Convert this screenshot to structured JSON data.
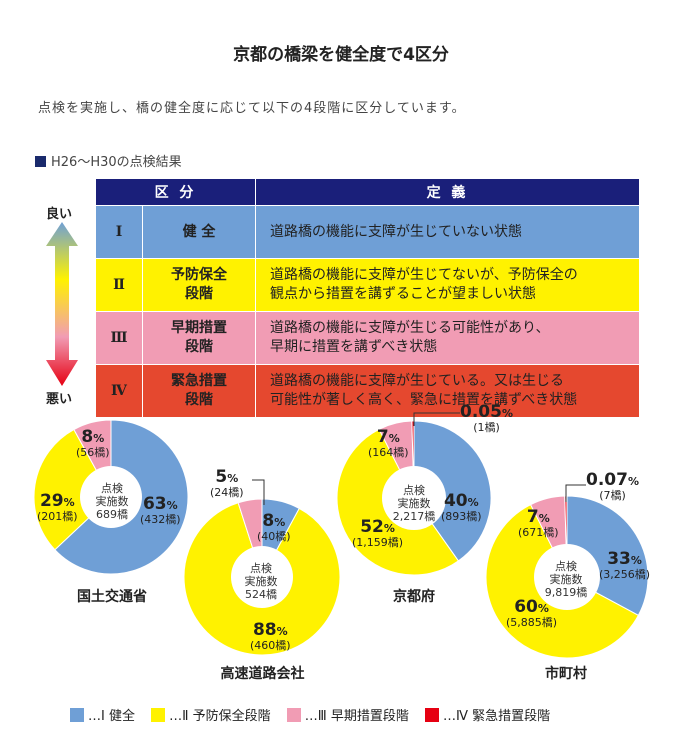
{
  "title": "京都の橋梁を健全度で4区分",
  "intro": "点検を実施し、橋の健全度に応じて以下の4段階に区分しています。",
  "section": "H26〜H30の点検結果",
  "table": {
    "header_class": "区 分",
    "header_def": "定 義",
    "rows": [
      {
        "num": "Ⅰ",
        "cls1": "健 全",
        "cls2": "",
        "d1": "道路橋の機能に支障が生じていない状態",
        "d2": ""
      },
      {
        "num": "Ⅱ",
        "cls1": "予防保全",
        "cls2": "段階",
        "d1": "道路橋の機能に支障が生じてないが、予防保全の",
        "d2": "観点から措置を講ずることが望ましい状態"
      },
      {
        "num": "Ⅲ",
        "cls1": "早期措置",
        "cls2": "段階",
        "d1": "道路橋の機能に支障が生じる可能性があり、",
        "d2": "早期に措置を講ずべき状態"
      },
      {
        "num": "Ⅳ",
        "cls1": "緊急措置",
        "cls2": "段階",
        "d1": "道路橋の機能に支障が生じている。又は生じる",
        "d2": "可能性が著しく高く、緊急に措置を講ずべき状態"
      }
    ]
  },
  "scale": {
    "good": "良い",
    "bad": "悪い"
  },
  "colors": {
    "I": "#6f9fd6",
    "II": "#fff200",
    "III": "#f19cb4",
    "IV": "#e60012"
  },
  "chart_data": [
    {
      "type": "pie",
      "name": "国土交通省",
      "center_label": [
        "点検",
        "実施数",
        "689橋"
      ],
      "slices": [
        {
          "category": "I",
          "percent": 63,
          "pct_label": "63",
          "count": "(432橋)"
        },
        {
          "category": "II",
          "percent": 29,
          "pct_label": "29",
          "count": "(201橋)"
        },
        {
          "category": "III",
          "percent": 8,
          "pct_label": "8",
          "count": "(56橋)"
        }
      ]
    },
    {
      "type": "pie",
      "name": "高速道路会社",
      "center_label": [
        "点検",
        "実施数",
        "524橋"
      ],
      "slices": [
        {
          "category": "I",
          "percent": 8,
          "pct_label": "8",
          "count": "(40橋)"
        },
        {
          "category": "II",
          "percent": 88,
          "pct_label": "88",
          "count": "(460橋)"
        },
        {
          "category": "III",
          "percent": 5,
          "pct_label": "5",
          "count": "(24橋)"
        }
      ]
    },
    {
      "type": "pie",
      "name": "京都府",
      "center_label": [
        "点検",
        "実施数",
        "2,217橋"
      ],
      "slices": [
        {
          "category": "I",
          "percent": 40,
          "pct_label": "40",
          "count": "(893橋)"
        },
        {
          "category": "II",
          "percent": 52,
          "pct_label": "52",
          "count": "(1,159橋)"
        },
        {
          "category": "III",
          "percent": 7,
          "pct_label": "7",
          "count": "(164橋)"
        },
        {
          "category": "IV",
          "percent": 0.05,
          "pct_label": "0.05",
          "count": "(1橋)"
        }
      ]
    },
    {
      "type": "pie",
      "name": "市町村",
      "center_label": [
        "点検",
        "実施数",
        "9,819橋"
      ],
      "slices": [
        {
          "category": "I",
          "percent": 33,
          "pct_label": "33",
          "count": "(3,256橋)"
        },
        {
          "category": "II",
          "percent": 60,
          "pct_label": "60",
          "count": "(5,885橋)"
        },
        {
          "category": "III",
          "percent": 7,
          "pct_label": "7",
          "count": "(671橋)"
        },
        {
          "category": "IV",
          "percent": 0.07,
          "pct_label": "0.07",
          "count": "(7橋)"
        }
      ]
    }
  ],
  "legend": [
    {
      "category": "I",
      "label": "…Ⅰ 健全"
    },
    {
      "category": "II",
      "label": "…Ⅱ 予防保全段階"
    },
    {
      "category": "III",
      "label": "…Ⅲ 早期措置段階"
    },
    {
      "category": "IV",
      "label": "…Ⅳ 緊急措置段階"
    }
  ]
}
